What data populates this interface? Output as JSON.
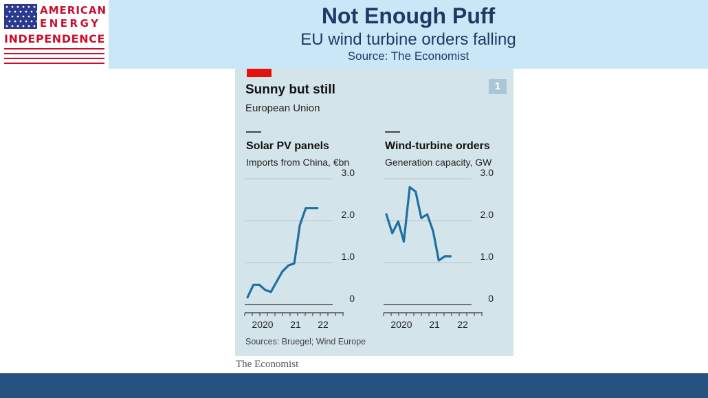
{
  "logo": {
    "line1": "AMERICAN",
    "line2": "ENERGY",
    "line3": "INDEPENDENCE",
    "flag_colors": {
      "blue": "#2b3a8c",
      "red": "#c8102e"
    }
  },
  "header": {
    "title": "Not Enough Puff",
    "subtitle": "EU wind turbine orders falling",
    "source": "Source: The Economist"
  },
  "panel": {
    "number": "1",
    "title": "Sunny but still",
    "subtitle": "European Union",
    "sources": "Sources: Bruegel; Wind Europe",
    "brand": "The Economist"
  },
  "chart_data": [
    {
      "type": "line",
      "title": "Solar PV panels",
      "subtitle": "Imports from China, €bn",
      "x_tick_labels": [
        "2020",
        "21",
        "22"
      ],
      "y_tick_labels": [
        "0",
        "1.0",
        "2.0",
        "3.0"
      ],
      "ylim": [
        0,
        3.0
      ],
      "xlim": [
        2019.75,
        2022.9
      ],
      "grid": true,
      "color": "#1f6fa3",
      "series": [
        {
          "x": [
            2019.83,
            2020.0,
            2020.17,
            2020.33,
            2020.5,
            2020.67,
            2020.83,
            2021.0,
            2021.17,
            2021.33,
            2021.5,
            2021.67,
            2021.83
          ],
          "y": [
            0.17,
            0.47,
            0.47,
            0.35,
            0.3,
            0.55,
            0.79,
            0.93,
            0.98,
            1.9,
            2.3,
            2.3,
            2.3
          ]
        }
      ]
    },
    {
      "type": "line",
      "title": "Wind-turbine orders",
      "subtitle": "Generation capacity, GW",
      "x_tick_labels": [
        "2020",
        "21",
        "22"
      ],
      "y_tick_labels": [
        "0",
        "1.0",
        "2.0",
        "3.0"
      ],
      "ylim": [
        0,
        3.0
      ],
      "xlim": [
        2019.75,
        2022.9
      ],
      "grid": true,
      "color": "#1f6fa3",
      "series": [
        {
          "x": [
            2019.83,
            2020.0,
            2020.17,
            2020.33,
            2020.5,
            2020.67,
            2020.83,
            2021.0,
            2021.17,
            2021.33,
            2021.5,
            2021.67
          ],
          "y": [
            2.15,
            1.7,
            1.98,
            1.5,
            2.8,
            2.69,
            2.06,
            2.15,
            1.75,
            1.05,
            1.15,
            1.15
          ]
        }
      ]
    }
  ]
}
